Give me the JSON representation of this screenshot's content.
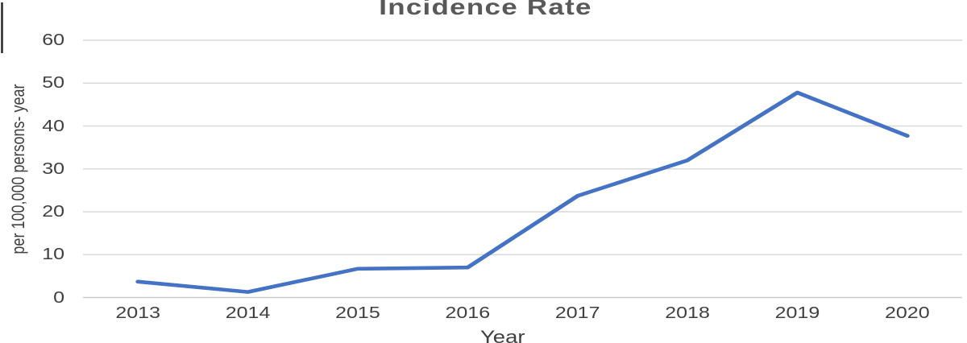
{
  "chart_data": {
    "type": "line",
    "title": "Incidence Rate",
    "xlabel": "Year",
    "ylabel": "per 100,000 persons- year",
    "categories": [
      "2013",
      "2014",
      "2015",
      "2016",
      "2017",
      "2018",
      "2019",
      "2020"
    ],
    "values": [
      3.7,
      1.3,
      6.7,
      7,
      23.7,
      32,
      47.8,
      37.7
    ],
    "ylim": [
      0,
      60
    ],
    "yticks": [
      0,
      10,
      20,
      30,
      40,
      50,
      60
    ],
    "grid": "horizontal",
    "legend_position": "none",
    "colors": {
      "line": "#4472C4",
      "grid": "#d9d9d9",
      "axis": "#cccccc",
      "tick_text": "#404040",
      "title_text": "#595959"
    }
  }
}
